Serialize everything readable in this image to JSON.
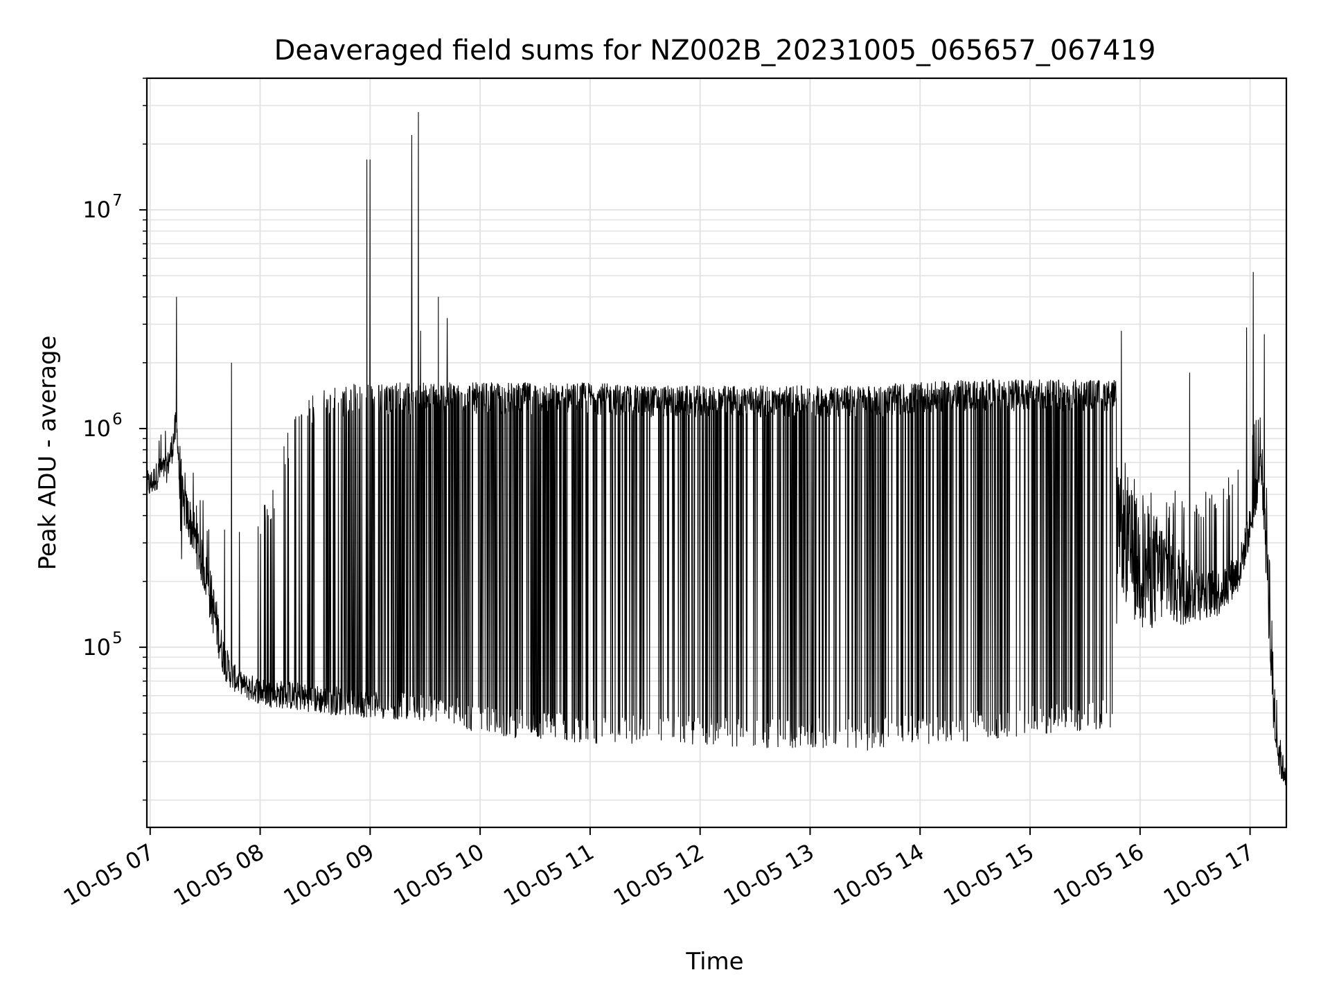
{
  "chart_data": {
    "type": "line",
    "title": "Deaveraged field sums for NZ002B_20231005_065657_067419",
    "xlabel": "Time",
    "ylabel": "Peak ADU - average",
    "yscale": "log",
    "grid": true,
    "line_color": "#000000",
    "xlim": [
      "10-05 06:58",
      "10-05 17:20"
    ],
    "ylim": [
      15000,
      40000000
    ],
    "x_ticks": [
      "10-05 07",
      "10-05 08",
      "10-05 09",
      "10-05 10",
      "10-05 11",
      "10-05 12",
      "10-05 13",
      "10-05 14",
      "10-05 15",
      "10-05 16",
      "10-05 17"
    ],
    "x_tick_hours": [
      7,
      8,
      9,
      10,
      11,
      12,
      13,
      14,
      15,
      16,
      17
    ],
    "y_ticks": [
      {
        "value": 100000,
        "base": "10",
        "exp": "5"
      },
      {
        "value": 1000000,
        "base": "10",
        "exp": "6"
      },
      {
        "value": 10000000,
        "base": "10",
        "exp": "7"
      }
    ],
    "series": [
      {
        "x_hours": [
          6.97,
          7.0,
          7.05,
          7.1,
          7.15,
          7.2,
          7.23,
          7.25,
          7.28,
          7.3,
          7.35,
          7.4,
          7.45,
          7.5,
          7.55,
          7.6,
          7.65,
          7.7,
          7.75,
          7.8,
          7.85,
          7.9,
          7.95,
          8.0,
          8.1,
          8.2,
          8.3,
          8.4,
          8.5,
          8.6,
          8.7,
          8.8,
          8.9,
          9.0,
          9.2,
          9.4,
          9.6,
          9.8,
          10.0,
          10.5,
          11.0,
          11.5,
          12.0,
          12.5,
          13.0,
          13.5,
          14.0,
          14.5,
          15.0,
          15.5,
          15.78,
          15.8,
          15.85,
          15.9,
          16.0,
          16.1,
          16.2,
          16.3,
          16.4,
          16.5,
          16.6,
          16.7,
          16.8,
          16.9,
          17.0,
          17.05,
          17.1,
          17.13,
          17.17,
          17.2,
          17.25,
          17.3,
          17.33
        ],
        "base": [
          600000,
          600000,
          650000,
          700000,
          700000,
          900000,
          1100000,
          1000000,
          600000,
          500000,
          450000,
          380000,
          300000,
          250000,
          200000,
          150000,
          110000,
          90000,
          80000,
          75000,
          72000,
          70000,
          70000,
          68000,
          66000,
          66000,
          65000,
          64000,
          63000,
          62000,
          62000,
          61000,
          60000,
          60000,
          59000,
          58000,
          56000,
          55000,
          50000,
          48000,
          46000,
          45000,
          45000,
          44000,
          44000,
          44000,
          46000,
          48000,
          50000,
          52000,
          55000,
          500000,
          420000,
          380000,
          350000,
          320000,
          300000,
          260000,
          230000,
          210000,
          200000,
          200000,
          220000,
          250000,
          400000,
          550000,
          800000,
          600000,
          300000,
          100000,
          40000,
          30000,
          30000
        ],
        "floor": [
          420000,
          420000,
          450000,
          500000,
          500000,
          600000,
          700000,
          700000,
          120000,
          300000,
          250000,
          200000,
          170000,
          140000,
          100000,
          80000,
          65000,
          58000,
          55000,
          55000,
          55000,
          50000,
          50000,
          48000,
          47000,
          46000,
          45000,
          45000,
          44000,
          43000,
          43000,
          43000,
          42000,
          42000,
          41000,
          41000,
          40000,
          38000,
          35000,
          33000,
          32000,
          31000,
          31000,
          30000,
          30000,
          29000,
          31000,
          32000,
          34000,
          36000,
          38000,
          170000,
          100000,
          80000,
          70000,
          70000,
          80000,
          80000,
          90000,
          100000,
          110000,
          110000,
          130000,
          150000,
          250000,
          330000,
          500000,
          200000,
          60000,
          25000,
          22000,
          20000,
          20000
        ],
        "spike_prob": [
          0.05,
          0.05,
          0.05,
          0.05,
          0.05,
          0.08,
          0.08,
          0.08,
          0.05,
          0.05,
          0.05,
          0.05,
          0.05,
          0.05,
          0.05,
          0.05,
          0.06,
          0.06,
          0.06,
          0.06,
          0.06,
          0.06,
          0.06,
          0.06,
          0.08,
          0.1,
          0.1,
          0.12,
          0.15,
          0.2,
          0.25,
          0.3,
          0.35,
          0.4,
          0.5,
          0.55,
          0.6,
          0.65,
          0.7,
          0.75,
          0.78,
          0.8,
          0.8,
          0.8,
          0.78,
          0.78,
          0.78,
          0.78,
          0.78,
          0.78,
          0.78,
          0.08,
          0.08,
          0.08,
          0.08,
          0.08,
          0.08,
          0.08,
          0.08,
          0.08,
          0.08,
          0.08,
          0.08,
          0.08,
          0.08,
          0.08,
          0.08,
          0.05,
          0.05,
          0.05,
          0.05,
          0.05,
          0.05
        ],
        "spike_level": [
          900000,
          900000,
          900000,
          1000000,
          1200000,
          1500000,
          1600000,
          1500000,
          800000,
          700000,
          600000,
          600000,
          500000,
          450000,
          400000,
          400000,
          400000,
          400000,
          400000,
          400000,
          400000,
          400000,
          400000,
          400000,
          500000,
          800000,
          1100000,
          1300000,
          1400000,
          1500000,
          1500000,
          1500000,
          1550000,
          1550000,
          1550000,
          1550000,
          1550000,
          1550000,
          1550000,
          1550000,
          1550000,
          1500000,
          1500000,
          1500000,
          1500000,
          1500000,
          1550000,
          1600000,
          1600000,
          1600000,
          1600000,
          600000,
          700000,
          600000,
          550000,
          500000,
          500000,
          500000,
          500000,
          500000,
          500000,
          500000,
          600000,
          700000,
          900000,
          1100000,
          1300000,
          900000,
          400000,
          150000,
          50000,
          45000,
          45000
        ]
      }
    ],
    "peaks": [
      {
        "x_hours": 7.24,
        "y": 4000000
      },
      {
        "x_hours": 7.74,
        "y": 2000000
      },
      {
        "x_hours": 8.97,
        "y": 17000000
      },
      {
        "x_hours": 9.0,
        "y": 17000000
      },
      {
        "x_hours": 9.38,
        "y": 22000000
      },
      {
        "x_hours": 9.44,
        "y": 28000000
      },
      {
        "x_hours": 9.46,
        "y": 2800000
      },
      {
        "x_hours": 9.62,
        "y": 4000000
      },
      {
        "x_hours": 9.7,
        "y": 3200000
      },
      {
        "x_hours": 15.83,
        "y": 2800000
      },
      {
        "x_hours": 16.45,
        "y": 1800000
      },
      {
        "x_hours": 16.97,
        "y": 2900000
      },
      {
        "x_hours": 17.03,
        "y": 5200000
      },
      {
        "x_hours": 17.13,
        "y": 2700000
      }
    ]
  }
}
